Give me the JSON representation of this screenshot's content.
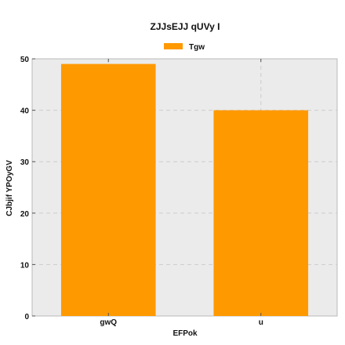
{
  "chart_data": {
    "type": "bar",
    "title": "ZJJsEJJ qUVy I",
    "xlabel": "EFPok",
    "ylabel": "CJbjif YPOyGV",
    "categories": [
      "gwQ",
      "u"
    ],
    "series": [
      {
        "name": "Tgw",
        "values": [
          49,
          40
        ]
      }
    ],
    "ylim": [
      0,
      50
    ],
    "yticks": [
      0,
      10,
      20,
      30,
      40,
      50
    ],
    "grid": true,
    "legend": "top-center",
    "colors": {
      "bar": "#ff9900",
      "background": "#ebebeb",
      "grid": "#cccccc"
    }
  }
}
